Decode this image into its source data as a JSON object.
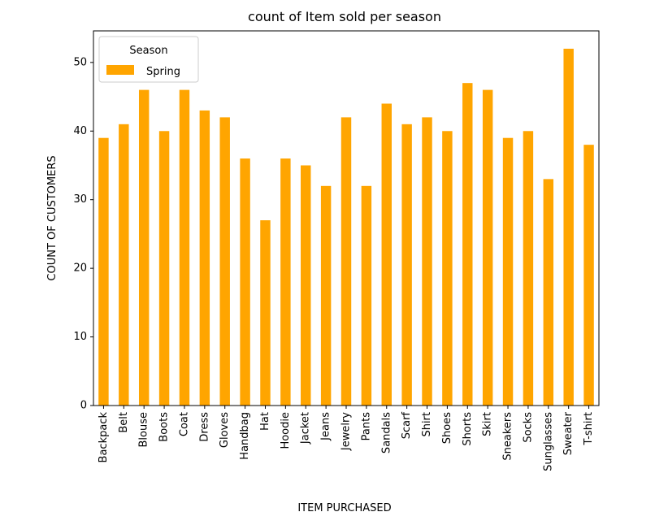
{
  "colors": {
    "bar": "#FFA500",
    "axis": "#000000",
    "background": "#FFFFFF",
    "legend_border": "#CCCCCC"
  },
  "chart_data": {
    "type": "bar",
    "title": "count of Item sold per season",
    "xlabel": "ITEM PURCHASED",
    "ylabel": "COUNT OF CUSTOMERS",
    "ylim": [
      0,
      54.6
    ],
    "yticks": [
      0,
      10,
      20,
      30,
      40,
      50
    ],
    "grid": false,
    "legend": {
      "title": "Season",
      "placement": "upper-left",
      "entries": [
        "Spring"
      ]
    },
    "categories": [
      "Backpack",
      "Belt",
      "Blouse",
      "Boots",
      "Coat",
      "Dress",
      "Gloves",
      "Handbag",
      "Hat",
      "Hoodie",
      "Jacket",
      "Jeans",
      "Jewelry",
      "Pants",
      "Sandals",
      "Scarf",
      "Shirt",
      "Shoes",
      "Shorts",
      "Skirt",
      "Sneakers",
      "Socks",
      "Sunglasses",
      "Sweater",
      "T-shirt"
    ],
    "series": [
      {
        "name": "Spring",
        "values": [
          39,
          41,
          46,
          40,
          46,
          43,
          42,
          36,
          27,
          36,
          35,
          32,
          42,
          32,
          44,
          41,
          42,
          40,
          47,
          46,
          39,
          40,
          33,
          52,
          38
        ]
      }
    ]
  }
}
